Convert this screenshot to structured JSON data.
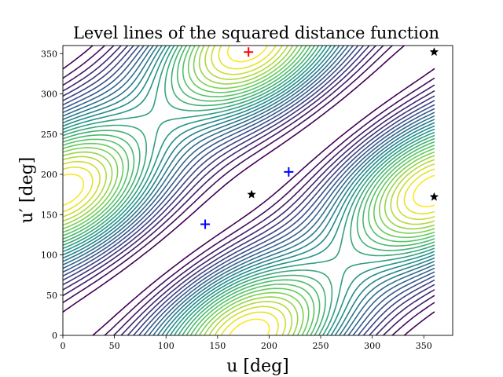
{
  "chart_data": {
    "type": "contour",
    "title": "Level lines of the squared distance function",
    "xlabel": "u [deg]",
    "ylabel": "u′ [deg]",
    "xlim": [
      0,
      378
    ],
    "ylim": [
      0,
      360
    ],
    "xticks": [
      0,
      50,
      100,
      150,
      200,
      250,
      300,
      350
    ],
    "yticks": [
      0,
      50,
      100,
      150,
      200,
      250,
      300,
      350
    ],
    "grid": false,
    "legend": false,
    "colormap": [
      "#440154",
      "#3b528b",
      "#21918c",
      "#5ec962",
      "#fde725"
    ],
    "contour_domain": {
      "u": [
        0,
        360
      ],
      "u_prime": [
        0,
        360
      ]
    },
    "markers": [
      {
        "kind": "plus",
        "color": "#ff0000",
        "x": 180,
        "y": 352
      },
      {
        "kind": "plus",
        "color": "#0000ff",
        "x": 138,
        "y": 138
      },
      {
        "kind": "plus",
        "color": "#0000ff",
        "x": 219,
        "y": 203
      },
      {
        "kind": "star",
        "color": "#000000",
        "x": 183,
        "y": 175
      },
      {
        "kind": "star",
        "color": "#000000",
        "x": 360,
        "y": 352
      },
      {
        "kind": "star",
        "color": "#000000",
        "x": 360,
        "y": 172
      }
    ]
  }
}
